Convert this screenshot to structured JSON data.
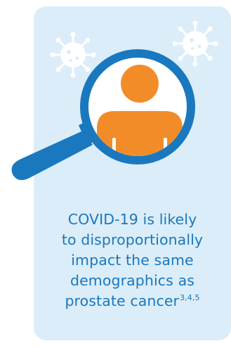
{
  "colors": {
    "card_background": "#dbedf8",
    "accent_blue": "#1a78be",
    "person_orange": "#f28c28",
    "virus_white": "#ffffff"
  },
  "icons": [
    "virus-icon",
    "magnifying-glass-icon",
    "person-icon"
  ],
  "caption": {
    "lines": [
      "COVID-19 is likely",
      "to disproportionally",
      "impact the same",
      "demographics as",
      "prostate cancer"
    ],
    "superscript": "3,4,5"
  }
}
